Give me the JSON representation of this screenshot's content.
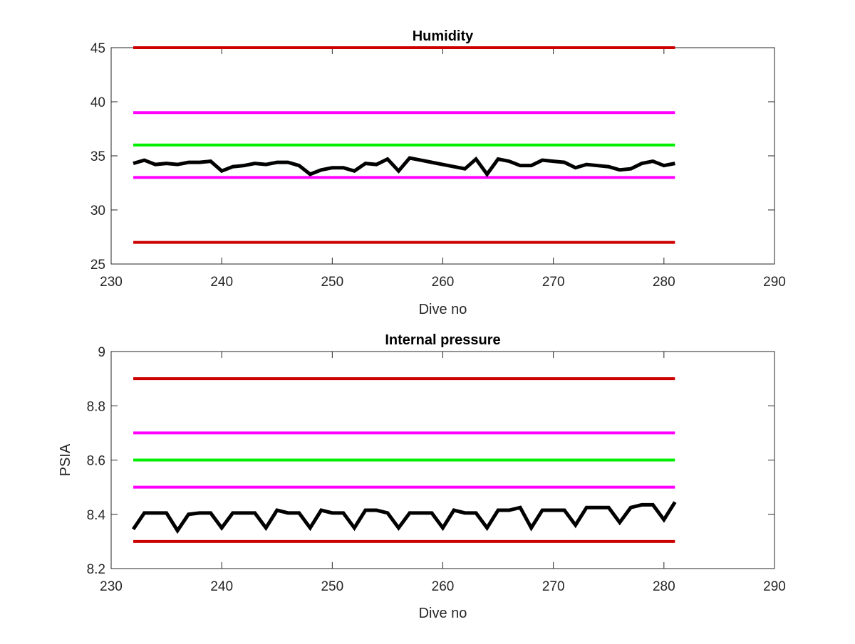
{
  "chart_data": [
    {
      "type": "line",
      "title": "Humidity",
      "xlabel": "Dive no",
      "ylabel": "",
      "xlim": [
        230,
        290
      ],
      "ylim": [
        25,
        45
      ],
      "xticks": [
        230,
        240,
        250,
        260,
        270,
        280,
        290
      ],
      "yticks": [
        25,
        30,
        35,
        40,
        45
      ],
      "grid": false,
      "series": [
        {
          "color": "#cc0000",
          "width": 4,
          "x": [
            232,
            281
          ],
          "y": [
            45,
            45
          ]
        },
        {
          "color": "#ff00ff",
          "width": 4,
          "x": [
            232,
            281
          ],
          "y": [
            39,
            39
          ]
        },
        {
          "color": "#00ee00",
          "width": 4,
          "x": [
            232,
            281
          ],
          "y": [
            36,
            36
          ]
        },
        {
          "color": "#ff00ff",
          "width": 4,
          "x": [
            232,
            281
          ],
          "y": [
            33,
            33
          ]
        },
        {
          "color": "#cc0000",
          "width": 4,
          "x": [
            232,
            281
          ],
          "y": [
            27,
            27
          ]
        },
        {
          "color": "#000000",
          "width": 5,
          "x": [
            232,
            233,
            234,
            235,
            236,
            237,
            238,
            239,
            240,
            241,
            242,
            243,
            244,
            245,
            246,
            247,
            248,
            249,
            250,
            251,
            252,
            253,
            254,
            255,
            256,
            257,
            258,
            259,
            260,
            261,
            262,
            263,
            264,
            265,
            266,
            267,
            268,
            269,
            270,
            271,
            272,
            273,
            274,
            275,
            276,
            277,
            278,
            279,
            280,
            281
          ],
          "y": [
            34.3,
            34.6,
            34.2,
            34.3,
            34.2,
            34.4,
            34.4,
            34.5,
            33.6,
            34.0,
            34.1,
            34.3,
            34.2,
            34.4,
            34.4,
            34.1,
            33.3,
            33.7,
            33.9,
            33.9,
            33.6,
            34.3,
            34.2,
            34.7,
            33.6,
            34.8,
            34.6,
            34.4,
            34.2,
            34.0,
            33.8,
            34.7,
            33.3,
            34.7,
            34.5,
            34.1,
            34.1,
            34.6,
            34.5,
            34.4,
            33.9,
            34.2,
            34.1,
            34.0,
            33.7,
            33.8,
            34.3,
            34.5,
            34.1,
            34.3
          ]
        }
      ]
    },
    {
      "type": "line",
      "title": "Internal pressure",
      "xlabel": "Dive no",
      "ylabel": "PSIA",
      "xlim": [
        230,
        290
      ],
      "ylim": [
        8.2,
        9
      ],
      "xticks": [
        230,
        240,
        250,
        260,
        270,
        280,
        290
      ],
      "yticks": [
        8.2,
        8.4,
        8.6,
        8.8,
        9
      ],
      "grid": false,
      "series": [
        {
          "color": "#cc0000",
          "width": 4,
          "x": [
            232,
            281
          ],
          "y": [
            8.9,
            8.9
          ]
        },
        {
          "color": "#ff00ff",
          "width": 4,
          "x": [
            232,
            281
          ],
          "y": [
            8.7,
            8.7
          ]
        },
        {
          "color": "#00ee00",
          "width": 4,
          "x": [
            232,
            281
          ],
          "y": [
            8.6,
            8.6
          ]
        },
        {
          "color": "#ff00ff",
          "width": 4,
          "x": [
            232,
            281
          ],
          "y": [
            8.5,
            8.5
          ]
        },
        {
          "color": "#cc0000",
          "width": 4,
          "x": [
            232,
            281
          ],
          "y": [
            8.3,
            8.3
          ]
        },
        {
          "color": "#000000",
          "width": 5,
          "x": [
            232,
            233,
            234,
            235,
            236,
            237,
            238,
            239,
            240,
            241,
            242,
            243,
            244,
            245,
            246,
            247,
            248,
            249,
            250,
            251,
            252,
            253,
            254,
            255,
            256,
            257,
            258,
            259,
            260,
            261,
            262,
            263,
            264,
            265,
            266,
            267,
            268,
            269,
            270,
            271,
            272,
            273,
            274,
            275,
            276,
            277,
            278,
            279,
            280,
            281
          ],
          "y": [
            8.345,
            8.405,
            8.405,
            8.405,
            8.34,
            8.4,
            8.405,
            8.405,
            8.35,
            8.405,
            8.405,
            8.405,
            8.35,
            8.415,
            8.405,
            8.405,
            8.35,
            8.415,
            8.405,
            8.405,
            8.35,
            8.415,
            8.415,
            8.405,
            8.35,
            8.405,
            8.405,
            8.405,
            8.35,
            8.415,
            8.405,
            8.405,
            8.35,
            8.415,
            8.415,
            8.425,
            8.35,
            8.415,
            8.415,
            8.415,
            8.36,
            8.425,
            8.425,
            8.425,
            8.37,
            8.425,
            8.435,
            8.435,
            8.38,
            8.445
          ]
        }
      ]
    }
  ]
}
